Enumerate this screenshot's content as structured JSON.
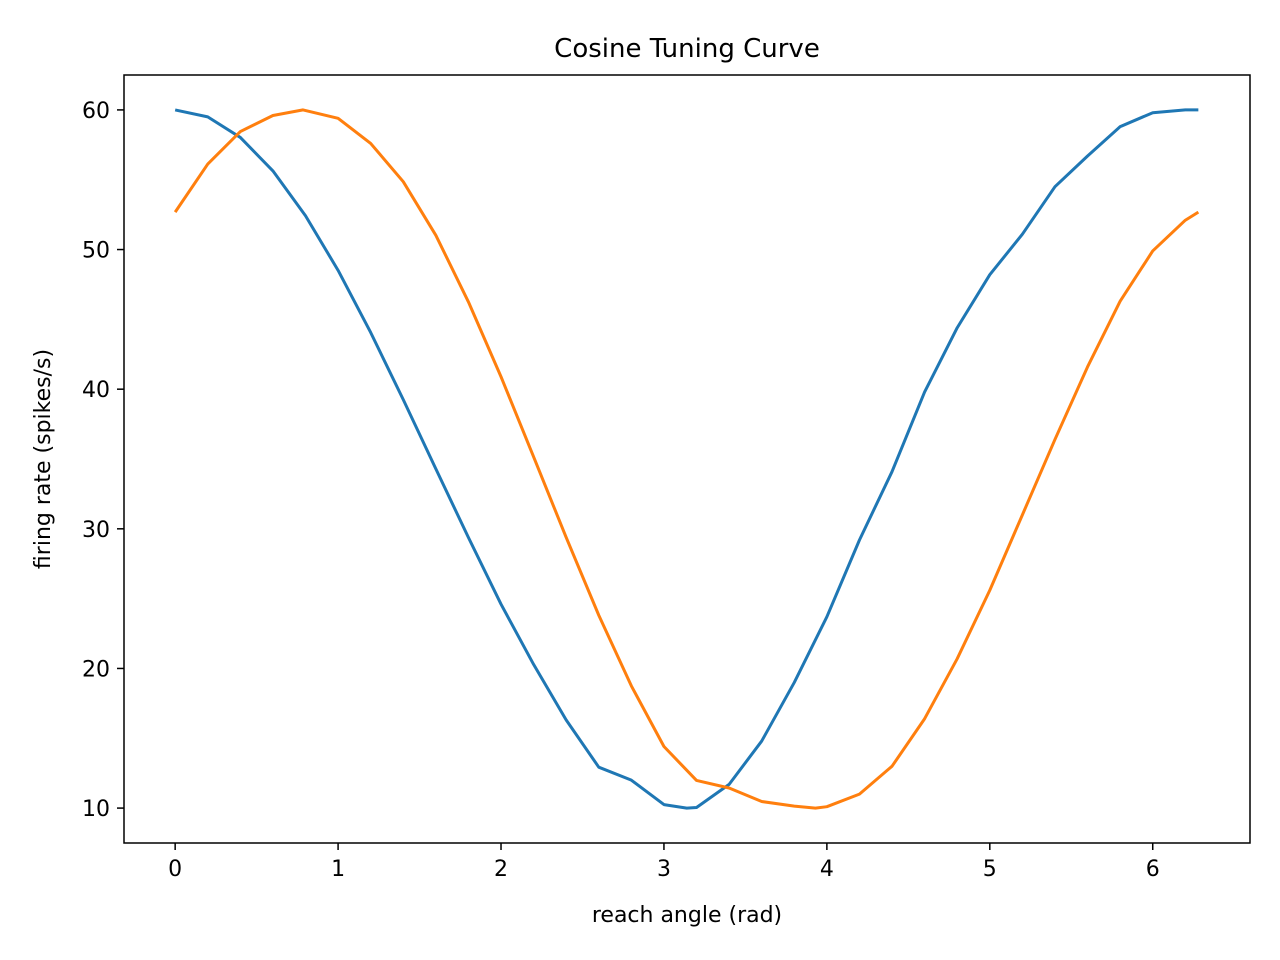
{
  "chart_data": {
    "type": "line",
    "title": "Cosine Tuning Curve",
    "xlabel": "reach angle (rad)",
    "ylabel": "firing rate (spikes/s)",
    "xlim": [
      -0.314,
      6.597
    ],
    "ylim": [
      7.5,
      62.5
    ],
    "xticks": [
      0,
      1,
      2,
      3,
      4,
      5,
      6
    ],
    "yticks": [
      10,
      20,
      30,
      40,
      50,
      60
    ],
    "grid": false,
    "legend": "none",
    "series": [
      {
        "color": "#1f77b4",
        "x": [
          0,
          0.2,
          0.4,
          0.6,
          0.8,
          1.0,
          1.2,
          1.4,
          1.6,
          1.8,
          2.0,
          2.2,
          2.4,
          2.6,
          2.8,
          3.0,
          3.14,
          3.2,
          3.4,
          3.6,
          3.8,
          4.0,
          4.2,
          4.4,
          4.6,
          4.8,
          5.0,
          5.2,
          5.4,
          5.6,
          5.8,
          6.0,
          6.2,
          6.28
        ],
        "y": [
          60.0,
          59.5,
          58.03,
          55.63,
          52.42,
          48.51,
          44.06,
          39.25,
          34.29,
          29.38,
          24.6,
          20.29,
          16.31,
          12.93,
          12.0,
          10.25,
          10.0,
          10.04,
          11.7,
          14.8,
          19.0,
          23.7,
          29.2,
          34.1,
          39.8,
          44.4,
          48.2,
          51.1,
          54.5,
          56.7,
          58.8,
          59.8,
          60.0,
          60.0
        ]
      },
      {
        "color": "#ff7f0e",
        "x": [
          0,
          0.2,
          0.4,
          0.6,
          0.785,
          1.0,
          1.2,
          1.4,
          1.6,
          1.8,
          2.0,
          2.2,
          2.4,
          2.6,
          2.8,
          3.0,
          3.2,
          3.4,
          3.6,
          3.8,
          3.93,
          4.0,
          4.2,
          4.4,
          4.6,
          4.8,
          5.0,
          5.2,
          5.4,
          5.6,
          5.8,
          6.0,
          6.2,
          6.28
        ],
        "y": [
          52.68,
          56.12,
          58.45,
          59.6,
          60.0,
          59.4,
          57.6,
          54.86,
          51.02,
          46.25,
          40.89,
          35.16,
          29.38,
          23.81,
          18.75,
          14.41,
          11.98,
          11.44,
          10.47,
          10.14,
          10.0,
          10.1,
          11.0,
          13.0,
          16.4,
          20.7,
          25.6,
          31.0,
          36.4,
          41.6,
          46.3,
          49.9,
          52.1,
          52.68
        ]
      }
    ]
  }
}
